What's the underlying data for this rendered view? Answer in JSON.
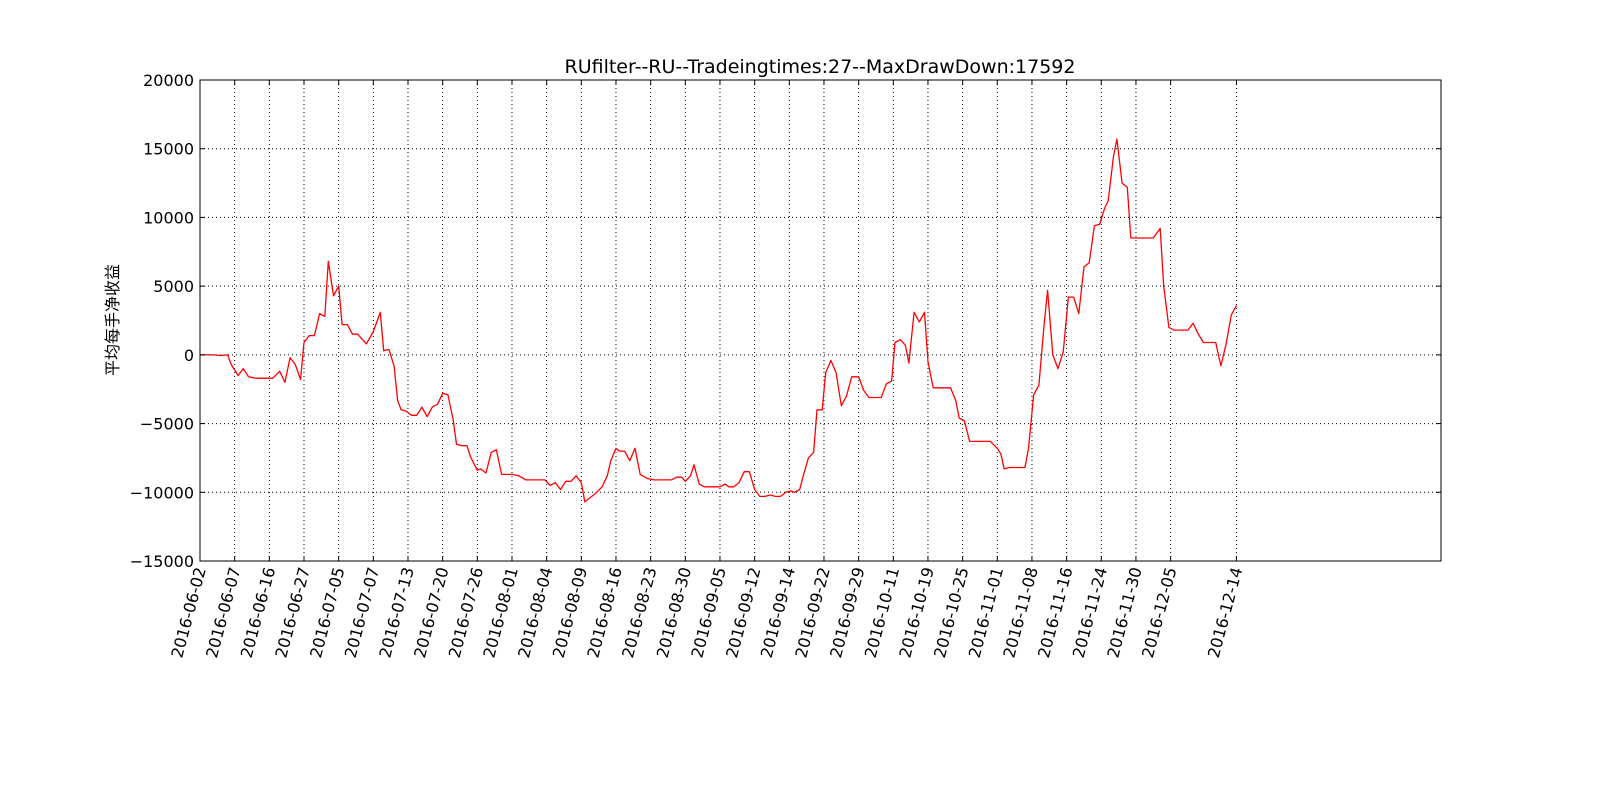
{
  "chart_data": {
    "type": "line",
    "title": "RUfilter--RU--Tradeingtimes:27--MaxDrawDown:17592",
    "xlabel": "",
    "ylabel": "平均每手净收益",
    "ylim": [
      -15000,
      20000
    ],
    "yticks": [
      -15000,
      -10000,
      -5000,
      0,
      5000,
      10000,
      15000,
      20000
    ],
    "ytick_labels": [
      "−15000",
      "−10000",
      "−5000",
      "0",
      "5000",
      "10000",
      "15000",
      "20000"
    ],
    "xlim": [
      0,
      358
    ],
    "xticks": [
      {
        "x": 0,
        "label": "2016-06-02"
      },
      {
        "x": 10,
        "label": "2016-06-07"
      },
      {
        "x": 20,
        "label": "2016-06-16"
      },
      {
        "x": 30,
        "label": "2016-06-27"
      },
      {
        "x": 40,
        "label": "2016-07-05"
      },
      {
        "x": 50,
        "label": "2016-07-07"
      },
      {
        "x": 60,
        "label": "2016-07-13"
      },
      {
        "x": 70,
        "label": "2016-07-20"
      },
      {
        "x": 80,
        "label": "2016-07-26"
      },
      {
        "x": 90,
        "label": "2016-08-01"
      },
      {
        "x": 100,
        "label": "2016-08-04"
      },
      {
        "x": 110,
        "label": "2016-08-09"
      },
      {
        "x": 120,
        "label": "2016-08-16"
      },
      {
        "x": 130,
        "label": "2016-08-23"
      },
      {
        "x": 140,
        "label": "2016-08-30"
      },
      {
        "x": 150,
        "label": "2016-09-05"
      },
      {
        "x": 160,
        "label": "2016-09-12"
      },
      {
        "x": 170,
        "label": "2016-09-14"
      },
      {
        "x": 180,
        "label": "2016-09-22"
      },
      {
        "x": 190,
        "label": "2016-09-29"
      },
      {
        "x": 200,
        "label": "2016-10-11"
      },
      {
        "x": 210,
        "label": "2016-10-19"
      },
      {
        "x": 220,
        "label": "2016-10-25"
      },
      {
        "x": 230,
        "label": "2016-11-01"
      },
      {
        "x": 240,
        "label": "2016-11-08"
      },
      {
        "x": 250,
        "label": "2016-11-16"
      },
      {
        "x": 260,
        "label": "2016-11-24"
      },
      {
        "x": 270,
        "label": "2016-11-30"
      },
      {
        "x": 280,
        "label": "2016-12-05"
      },
      {
        "x": 299,
        "label": "2016-12-14"
      }
    ],
    "grid": true,
    "legend": "none",
    "series": [
      {
        "color": "#ff0000",
        "points": [
          [
            0,
            0
          ],
          [
            4,
            0
          ],
          [
            6,
            -50
          ],
          [
            8,
            0
          ],
          [
            9,
            -700
          ],
          [
            11,
            -1500
          ],
          [
            12.5,
            -1000
          ],
          [
            14,
            -1600
          ],
          [
            16,
            -1700
          ],
          [
            20,
            -1700
          ],
          [
            21,
            -1700
          ],
          [
            23,
            -1200
          ],
          [
            24.5,
            -2000
          ],
          [
            26,
            -200
          ],
          [
            27.5,
            -700
          ],
          [
            29,
            -1800
          ],
          [
            30,
            900
          ],
          [
            31.5,
            1400
          ],
          [
            33,
            1400
          ],
          [
            34.5,
            3000
          ],
          [
            36,
            2800
          ],
          [
            37,
            6800
          ],
          [
            38.5,
            4300
          ],
          [
            40,
            5000
          ],
          [
            41,
            2200
          ],
          [
            42.5,
            2200
          ],
          [
            44,
            1500
          ],
          [
            45.5,
            1500
          ],
          [
            48,
            800
          ],
          [
            50,
            1700
          ],
          [
            52,
            3100
          ],
          [
            53,
            300
          ],
          [
            54.5,
            400
          ],
          [
            56,
            -800
          ],
          [
            57,
            -3300
          ],
          [
            58,
            -4000
          ],
          [
            59.5,
            -4100
          ],
          [
            61,
            -4400
          ],
          [
            62.5,
            -4400
          ],
          [
            64,
            -3800
          ],
          [
            65.5,
            -4500
          ],
          [
            67,
            -3800
          ],
          [
            68.5,
            -3600
          ],
          [
            70,
            -2800
          ],
          [
            71.5,
            -2900
          ],
          [
            73,
            -4700
          ],
          [
            74,
            -6500
          ],
          [
            75.5,
            -6600
          ],
          [
            77,
            -6600
          ],
          [
            78,
            -7400
          ],
          [
            80,
            -8400
          ],
          [
            81,
            -8300
          ],
          [
            82.5,
            -8600
          ],
          [
            84,
            -7100
          ],
          [
            85.5,
            -6900
          ],
          [
            87,
            -8700
          ],
          [
            88.5,
            -8700
          ],
          [
            90,
            -8700
          ],
          [
            92,
            -8800
          ],
          [
            94,
            -9100
          ],
          [
            96,
            -9100
          ],
          [
            98,
            -9100
          ],
          [
            99.5,
            -9100
          ],
          [
            101,
            -9500
          ],
          [
            102.5,
            -9300
          ],
          [
            104,
            -9800
          ],
          [
            105.5,
            -9200
          ],
          [
            107,
            -9200
          ],
          [
            108.5,
            -8800
          ],
          [
            110,
            -9300
          ],
          [
            111,
            -10700
          ],
          [
            112.5,
            -10400
          ],
          [
            114,
            -10100
          ],
          [
            116,
            -9600
          ],
          [
            117.5,
            -8800
          ],
          [
            118.5,
            -7700
          ],
          [
            120,
            -6800
          ],
          [
            121,
            -7000
          ],
          [
            122.5,
            -7000
          ],
          [
            124,
            -7700
          ],
          [
            125.5,
            -6800
          ],
          [
            127,
            -8700
          ],
          [
            129,
            -9000
          ],
          [
            131,
            -9100
          ],
          [
            134,
            -9100
          ],
          [
            136,
            -9100
          ],
          [
            137.5,
            -8900
          ],
          [
            139,
            -8900
          ],
          [
            140,
            -9200
          ],
          [
            141.5,
            -8800
          ],
          [
            142.5,
            -8000
          ],
          [
            144,
            -9400
          ],
          [
            145.5,
            -9600
          ],
          [
            148,
            -9600
          ],
          [
            150,
            -9600
          ],
          [
            151.5,
            -9400
          ],
          [
            152.5,
            -9600
          ],
          [
            154,
            -9600
          ],
          [
            155.5,
            -9300
          ],
          [
            157,
            -8500
          ],
          [
            158.5,
            -8500
          ],
          [
            160,
            -9800
          ],
          [
            161.5,
            -10300
          ],
          [
            163,
            -10300
          ],
          [
            164.5,
            -10200
          ],
          [
            166,
            -10300
          ],
          [
            167.5,
            -10300
          ],
          [
            169,
            -10000
          ],
          [
            170.5,
            -9900
          ],
          [
            171.5,
            -10000
          ],
          [
            173,
            -9800
          ],
          [
            174,
            -8800
          ],
          [
            175.5,
            -7500
          ],
          [
            177,
            -7100
          ],
          [
            178,
            -4000
          ],
          [
            179.5,
            -4000
          ],
          [
            180.5,
            -1300
          ],
          [
            182,
            -400
          ],
          [
            183.5,
            -1300
          ],
          [
            185,
            -3700
          ],
          [
            186.5,
            -3000
          ],
          [
            188,
            -1600
          ],
          [
            190,
            -1600
          ],
          [
            191.5,
            -2600
          ],
          [
            193,
            -3100
          ],
          [
            195,
            -3100
          ],
          [
            196.5,
            -3100
          ],
          [
            198,
            -2100
          ],
          [
            199.5,
            -1900
          ],
          [
            200.5,
            900
          ],
          [
            202,
            1100
          ],
          [
            203.5,
            700
          ],
          [
            204.5,
            -600
          ],
          [
            206,
            3100
          ],
          [
            207.5,
            2400
          ],
          [
            209,
            3100
          ],
          [
            210,
            -500
          ],
          [
            211.5,
            -2400
          ],
          [
            213,
            -2400
          ],
          [
            215,
            -2400
          ],
          [
            216.5,
            -2400
          ],
          [
            218,
            -3300
          ],
          [
            219,
            -4600
          ],
          [
            220.5,
            -4800
          ],
          [
            222,
            -6300
          ],
          [
            224,
            -6300
          ],
          [
            228,
            -6300
          ],
          [
            230,
            -6800
          ],
          [
            231,
            -7200
          ],
          [
            232,
            -8300
          ],
          [
            233.5,
            -8200
          ],
          [
            235,
            -8200
          ],
          [
            237,
            -8200
          ],
          [
            238,
            -8200
          ],
          [
            239,
            -6800
          ],
          [
            240.5,
            -2900
          ],
          [
            242,
            -2200
          ],
          [
            243.5,
            2200
          ],
          [
            244.5,
            4700
          ],
          [
            246,
            0
          ],
          [
            247.5,
            -1000
          ],
          [
            249,
            200
          ],
          [
            250.5,
            4200
          ],
          [
            252,
            4200
          ],
          [
            253.5,
            3000
          ],
          [
            255,
            6400
          ],
          [
            256.5,
            6700
          ],
          [
            258,
            9400
          ],
          [
            259.5,
            9500
          ],
          [
            261,
            10700
          ],
          [
            262,
            11200
          ],
          [
            263.5,
            14400
          ],
          [
            264.5,
            15700
          ],
          [
            266,
            12500
          ],
          [
            267.5,
            12200
          ],
          [
            268.5,
            8500
          ],
          [
            270,
            8500
          ],
          [
            272,
            8500
          ],
          [
            275,
            8500
          ],
          [
            277,
            9200
          ],
          [
            278,
            5000
          ],
          [
            279.5,
            2000
          ],
          [
            281,
            1800
          ],
          [
            283.5,
            1800
          ],
          [
            285,
            1800
          ],
          [
            286.5,
            2300
          ],
          [
            288,
            1500
          ],
          [
            289.5,
            900
          ],
          [
            291,
            900
          ],
          [
            293,
            900
          ],
          [
            294.5,
            -800
          ],
          [
            296,
            800
          ],
          [
            297.5,
            2900
          ],
          [
            299,
            3600
          ]
        ]
      }
    ]
  }
}
